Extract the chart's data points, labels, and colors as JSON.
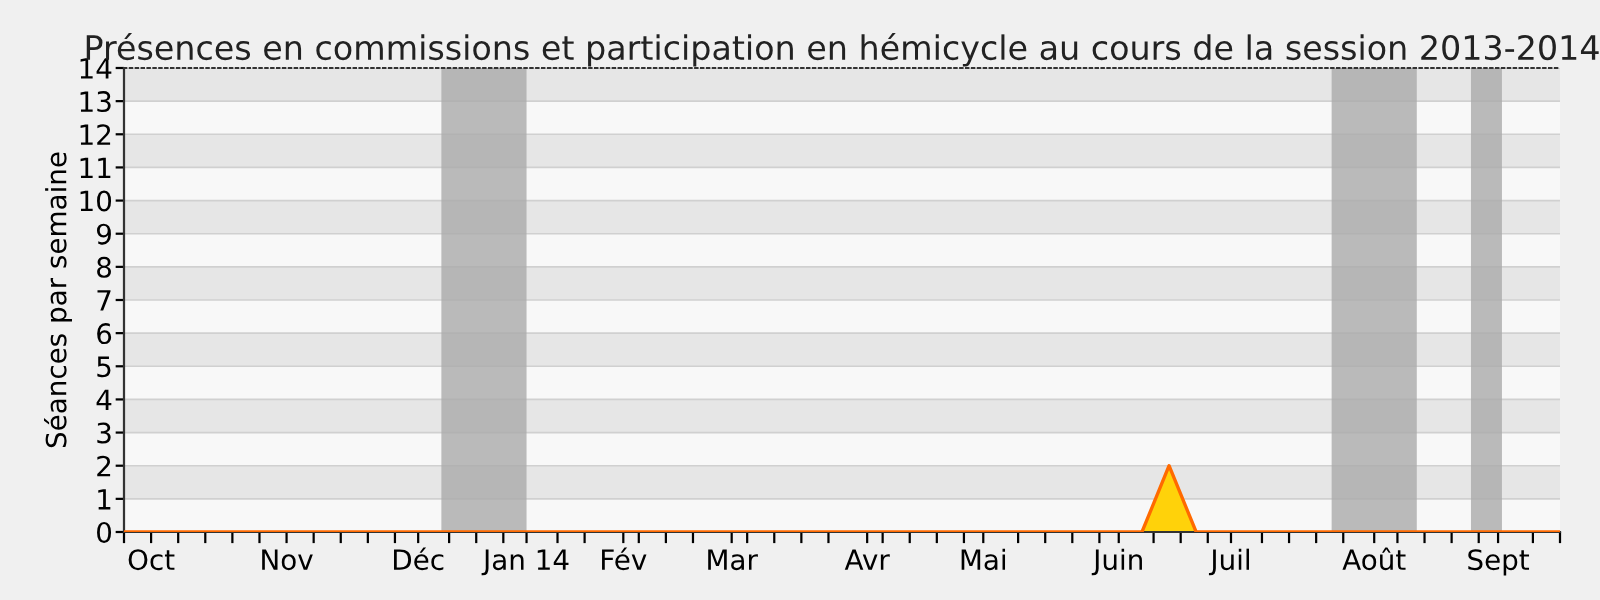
{
  "chart_data": {
    "type": "area",
    "title": "Présences en commissions et participation en hémicycle au cours de la session 2013-2014",
    "ylabel": "Séances par semaine",
    "xlim": [
      "2013-09-30",
      "2014-10-06"
    ],
    "ylim": [
      0,
      14
    ],
    "yticks": [
      0,
      1,
      2,
      3,
      4,
      5,
      6,
      7,
      8,
      9,
      10,
      11,
      12,
      13,
      14
    ],
    "xticks": [
      {
        "value": "2013-10-07",
        "label": "Oct"
      },
      {
        "value": "2013-11-11",
        "label": "Nov"
      },
      {
        "value": "2013-12-15",
        "label": "Déc"
      },
      {
        "value": "2014-01-12",
        "label": "Jan 14"
      },
      {
        "value": "2014-02-06",
        "label": "Fév"
      },
      {
        "value": "2014-03-06",
        "label": "Mar"
      },
      {
        "value": "2014-04-10",
        "label": "Avr"
      },
      {
        "value": "2014-05-10",
        "label": "Mai"
      },
      {
        "value": "2014-06-14",
        "label": "Juin"
      },
      {
        "value": "2014-07-13",
        "label": "Juil"
      },
      {
        "value": "2014-08-19",
        "label": "Août"
      },
      {
        "value": "2014-09-20",
        "label": "Sept"
      },
      {
        "value": "2013-09-30",
        "label": null
      },
      {
        "value": "2013-10-14",
        "label": null
      },
      {
        "value": "2013-10-21",
        "label": null
      },
      {
        "value": "2013-10-28",
        "label": null
      },
      {
        "value": "2013-11-04",
        "label": null
      },
      {
        "value": "2013-11-18",
        "label": null
      },
      {
        "value": "2013-11-25",
        "label": null
      },
      {
        "value": "2013-12-02",
        "label": null
      },
      {
        "value": "2013-12-09",
        "label": null
      },
      {
        "value": "2013-12-23",
        "label": null
      },
      {
        "value": "2013-12-30",
        "label": null
      },
      {
        "value": "2014-01-06",
        "label": null
      },
      {
        "value": "2014-01-20",
        "label": null
      },
      {
        "value": "2014-01-27",
        "label": null
      },
      {
        "value": "2014-02-10",
        "label": null
      },
      {
        "value": "2014-02-17",
        "label": null
      },
      {
        "value": "2014-02-24",
        "label": null
      },
      {
        "value": "2014-03-10",
        "label": null
      },
      {
        "value": "2014-03-17",
        "label": null
      },
      {
        "value": "2014-03-24",
        "label": null
      },
      {
        "value": "2014-03-31",
        "label": null
      },
      {
        "value": "2014-04-14",
        "label": null
      },
      {
        "value": "2014-04-21",
        "label": null
      },
      {
        "value": "2014-04-28",
        "label": null
      },
      {
        "value": "2014-05-05",
        "label": null
      },
      {
        "value": "2014-05-19",
        "label": null
      },
      {
        "value": "2014-05-26",
        "label": null
      },
      {
        "value": "2014-06-02",
        "label": null
      },
      {
        "value": "2014-06-09",
        "label": null
      },
      {
        "value": "2014-06-23",
        "label": null
      },
      {
        "value": "2014-06-30",
        "label": null
      },
      {
        "value": "2014-07-07",
        "label": null
      },
      {
        "value": "2014-07-21",
        "label": null
      },
      {
        "value": "2014-07-28",
        "label": null
      },
      {
        "value": "2014-08-04",
        "label": null
      },
      {
        "value": "2014-08-11",
        "label": null
      },
      {
        "value": "2014-08-25",
        "label": null
      },
      {
        "value": "2014-09-01",
        "label": null
      },
      {
        "value": "2014-09-08",
        "label": null
      },
      {
        "value": "2014-09-15",
        "label": null
      },
      {
        "value": "2014-09-29",
        "label": null
      },
      {
        "value": "2014-10-06",
        "label": null
      }
    ],
    "grid": "y",
    "bands": [
      {
        "axis": "x",
        "from": "2013-12-21",
        "to": "2014-01-12",
        "color": "#aaaaaa"
      },
      {
        "axis": "x",
        "from": "2014-08-08",
        "to": "2014-08-30",
        "color": "#aaaaaa"
      },
      {
        "axis": "x",
        "from": "2014-09-13",
        "to": "2014-09-21",
        "color": "#aaaaaa"
      }
    ],
    "series": [
      {
        "color": "#ffd20a",
        "x": [
          "2013-09-30",
          "2014-06-20",
          "2014-06-27",
          "2014-07-04",
          "2014-10-06"
        ],
        "values": [
          0,
          0,
          2,
          0,
          0
        ]
      }
    ]
  }
}
